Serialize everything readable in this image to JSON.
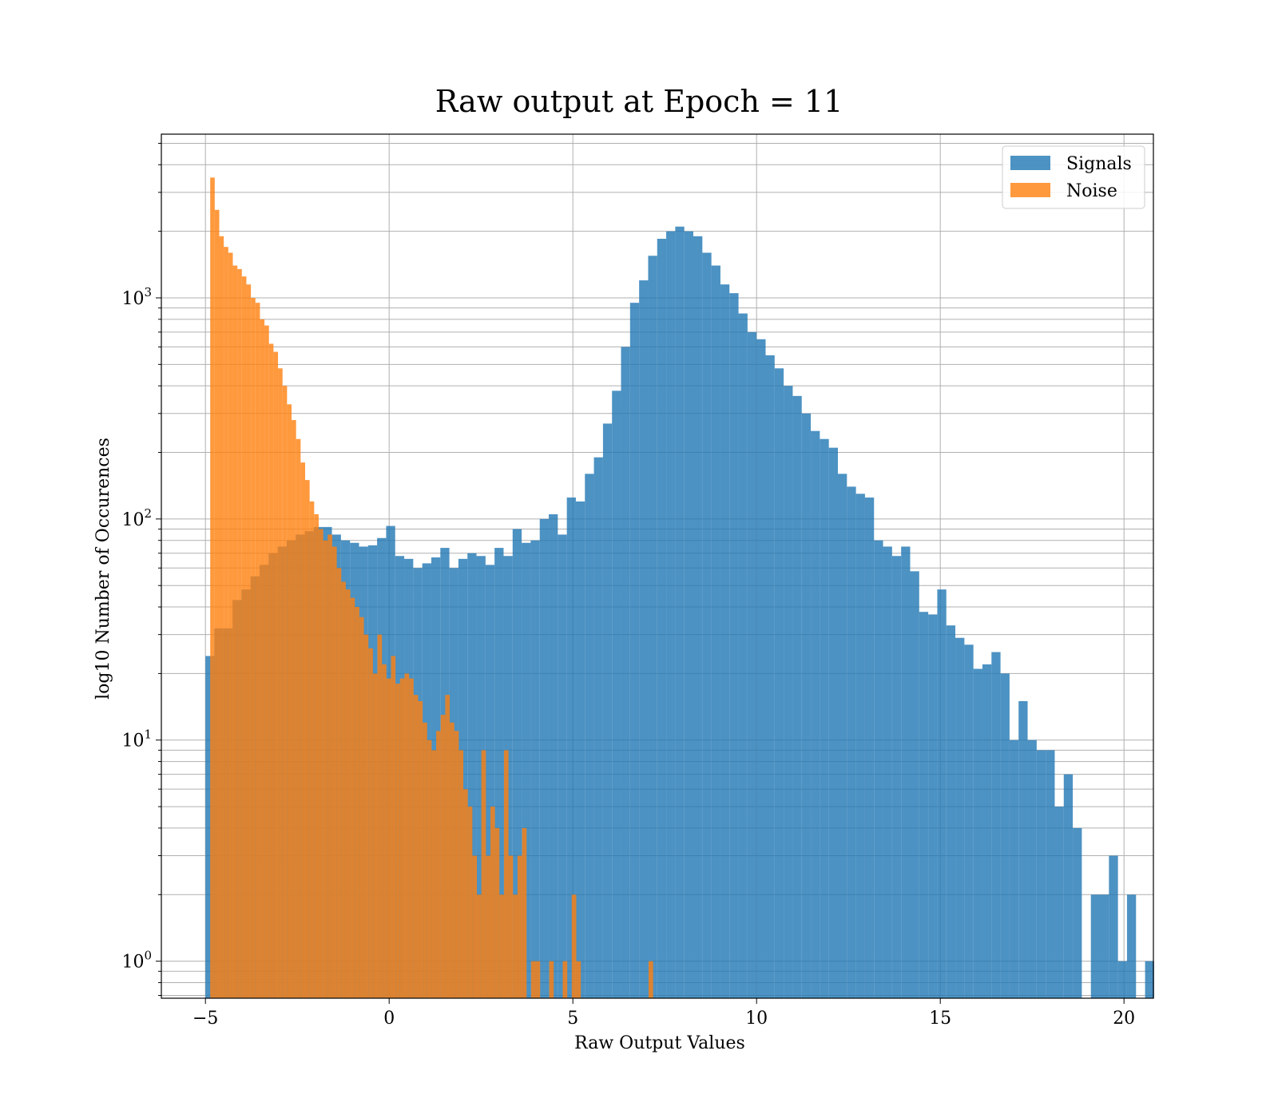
{
  "chart_data": {
    "type": "histogram",
    "title": "Raw output at Epoch = 11",
    "xlabel": "Raw Output Values",
    "ylabel": "log10 Number of Occurences",
    "xlim": [
      -6.2,
      20.8
    ],
    "ylim": [
      0.68,
      5500
    ],
    "yscale": "log",
    "grid": true,
    "legend_position": "top-right",
    "x_ticks": [
      {
        "value": -5,
        "label": "−5"
      },
      {
        "value": 0,
        "label": "0"
      },
      {
        "value": 5,
        "label": "5"
      },
      {
        "value": 10,
        "label": "10"
      },
      {
        "value": 15,
        "label": "15"
      },
      {
        "value": 20,
        "label": "20"
      }
    ],
    "y_ticks": [
      {
        "value": 1,
        "base": "10",
        "exp": "0"
      },
      {
        "value": 10,
        "base": "10",
        "exp": "1"
      },
      {
        "value": 100,
        "base": "10",
        "exp": "2"
      },
      {
        "value": 1000,
        "base": "10",
        "exp": "3"
      }
    ],
    "series": [
      {
        "name": "Signals",
        "color": "#1f77b4",
        "opacity": 0.8,
        "bin_start": -5.0,
        "bin_width": 0.2459,
        "counts": [
          24,
          32,
          32,
          43,
          48,
          55,
          62,
          70,
          75,
          80,
          85,
          88,
          92,
          92,
          85,
          80,
          78,
          75,
          76,
          82,
          93,
          68,
          66,
          60,
          63,
          67,
          74,
          60,
          66,
          70,
          68,
          62,
          74,
          68,
          90,
          78,
          80,
          100,
          105,
          85,
          125,
          120,
          160,
          190,
          270,
          380,
          600,
          950,
          1200,
          1550,
          1850,
          2000,
          2100,
          2000,
          1900,
          1600,
          1400,
          1150,
          1050,
          850,
          700,
          650,
          550,
          480,
          400,
          360,
          300,
          250,
          230,
          210,
          160,
          140,
          130,
          125,
          80,
          75,
          68,
          75,
          58,
          38,
          37,
          48,
          33,
          29,
          27,
          21,
          22,
          25,
          20,
          10,
          15,
          10,
          9,
          9,
          5,
          7,
          4,
          0,
          2,
          2,
          3,
          1,
          2,
          0,
          1
        ]
      },
      {
        "name": "Noise",
        "color": "#ff7f0e",
        "opacity": 0.8,
        "bin_start": -4.87,
        "bin_width": 0.123,
        "counts": [
          3500,
          2500,
          1900,
          1700,
          1600,
          1400,
          1350,
          1250,
          1150,
          1000,
          950,
          800,
          750,
          620,
          570,
          480,
          400,
          330,
          280,
          230,
          180,
          150,
          120,
          105,
          90,
          80,
          85,
          75,
          60,
          52,
          48,
          44,
          40,
          36,
          30,
          26,
          20,
          30,
          22,
          19,
          24,
          18,
          19,
          20,
          19,
          16,
          15,
          12,
          10,
          9,
          11,
          13,
          16,
          12,
          11,
          9,
          6,
          5,
          3,
          2,
          9,
          3,
          5,
          4,
          2,
          9,
          3,
          2,
          3,
          4,
          0,
          1,
          1,
          0,
          0,
          1,
          0,
          0,
          1,
          0,
          2,
          1,
          0,
          0,
          0,
          0,
          0,
          0,
          0,
          0,
          0,
          0,
          0,
          0,
          0,
          0,
          0,
          1,
          0,
          0,
          0,
          0,
          0,
          0,
          0,
          0,
          0,
          0,
          0,
          0,
          0,
          0,
          0,
          0,
          0,
          0,
          0,
          0,
          0,
          0,
          0,
          0,
          0,
          0,
          0
        ]
      }
    ]
  }
}
